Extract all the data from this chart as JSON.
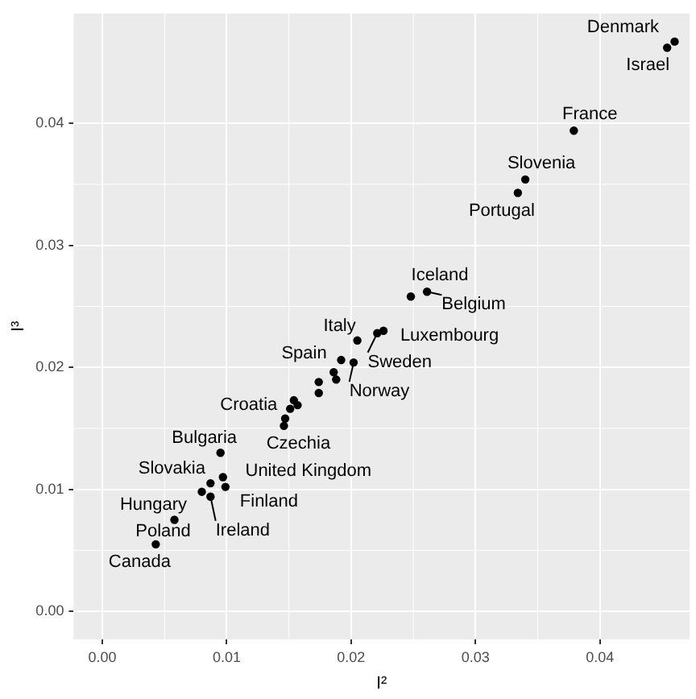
{
  "chart_data": {
    "type": "scatter",
    "xlabel": "I²",
    "ylabel": "I³",
    "color": "#000000",
    "marker": "circle",
    "grid": true,
    "legend": false,
    "xlim": [
      -0.0023,
      0.0472
    ],
    "ylim": [
      -0.0023,
      0.049
    ],
    "xticks": [
      {
        "value": 0,
        "label": "0.00"
      },
      {
        "value": 0.01,
        "label": "0.01"
      },
      {
        "value": 0.02,
        "label": "0.02"
      },
      {
        "value": 0.03,
        "label": "0.03"
      },
      {
        "value": 0.04,
        "label": "0.04"
      }
    ],
    "yticks": [
      {
        "value": 0,
        "label": "0.00"
      },
      {
        "value": 0.01,
        "label": "0.01"
      },
      {
        "value": 0.02,
        "label": "0.02"
      },
      {
        "value": 0.03,
        "label": "0.03"
      },
      {
        "value": 0.04,
        "label": "0.04"
      }
    ],
    "x": [
      0.046,
      0.0454,
      0.0379,
      0.034,
      0.0334,
      0.0248,
      0.0261,
      0.0205,
      0.0226,
      0.0192,
      0.0221,
      0.0202,
      0.0154,
      0.0146,
      0.0095,
      0.0087,
      0.0097,
      0.008,
      0.0099,
      0.0087,
      0.0058,
      0.0043,
      0.0186,
      0.0188,
      0.0174,
      0.0174,
      0.0157,
      0.0151,
      0.0147
    ],
    "values": [
      0.0467,
      0.0462,
      0.0394,
      0.0354,
      0.0343,
      0.0258,
      0.0262,
      0.0222,
      0.023,
      0.0206,
      0.0228,
      0.0204,
      0.0173,
      0.0152,
      0.013,
      0.0105,
      0.011,
      0.0098,
      0.0102,
      0.0094,
      0.0075,
      0.0055,
      0.0196,
      0.019,
      0.0188,
      0.0179,
      0.0169,
      0.0166,
      0.0158
    ],
    "annotations": [
      {
        "text": "Denmark",
        "x": 0.046,
        "y": 0.0467
      },
      {
        "text": "Israel",
        "x": 0.0454,
        "y": 0.0462
      },
      {
        "text": "France",
        "x": 0.0379,
        "y": 0.0394
      },
      {
        "text": "Slovenia",
        "x": 0.034,
        "y": 0.0354
      },
      {
        "text": "Portugal",
        "x": 0.0334,
        "y": 0.0343
      },
      {
        "text": "Iceland",
        "x": 0.0248,
        "y": 0.0258
      },
      {
        "text": "Belgium",
        "x": 0.0261,
        "y": 0.0262
      },
      {
        "text": "Italy",
        "x": 0.0205,
        "y": 0.0222
      },
      {
        "text": "Luxembourg",
        "x": 0.0226,
        "y": 0.023
      },
      {
        "text": "Spain",
        "x": 0.0192,
        "y": 0.0206
      },
      {
        "text": "Sweden",
        "x": 0.0221,
        "y": 0.0228
      },
      {
        "text": "Norway",
        "x": 0.0202,
        "y": 0.0204
      },
      {
        "text": "Croatia",
        "x": 0.0154,
        "y": 0.0173
      },
      {
        "text": "Czechia",
        "x": 0.0146,
        "y": 0.0152
      },
      {
        "text": "Bulgaria",
        "x": 0.0095,
        "y": 0.013
      },
      {
        "text": "Slovakia",
        "x": 0.0087,
        "y": 0.0105
      },
      {
        "text": "United Kingdom",
        "x": 0.0097,
        "y": 0.011
      },
      {
        "text": "Hungary",
        "x": 0.008,
        "y": 0.0098
      },
      {
        "text": "Finland",
        "x": 0.0099,
        "y": 0.0102
      },
      {
        "text": "Ireland",
        "x": 0.0087,
        "y": 0.0094
      },
      {
        "text": "Poland",
        "x": 0.0058,
        "y": 0.0075
      },
      {
        "text": "Canada",
        "x": 0.0043,
        "y": 0.0055
      }
    ]
  }
}
